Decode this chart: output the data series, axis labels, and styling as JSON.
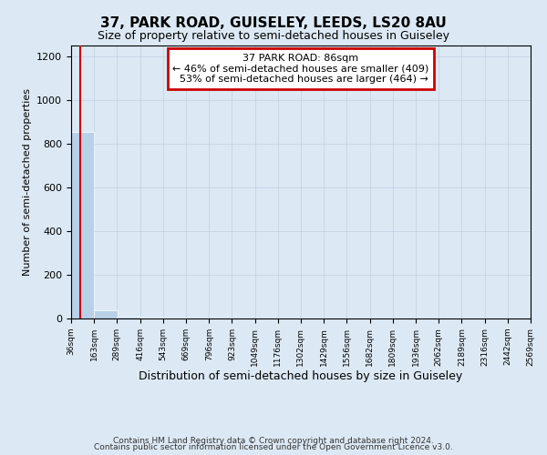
{
  "title": "37, PARK ROAD, GUISELEY, LEEDS, LS20 8AU",
  "subtitle": "Size of property relative to semi-detached houses in Guiseley",
  "xlabel": "Distribution of semi-detached houses by size in Guiseley",
  "ylabel": "Number of semi-detached properties",
  "property_size": 86,
  "property_label": "37 PARK ROAD: 86sqm",
  "pct_smaller": 46,
  "pct_larger": 53,
  "n_smaller": 409,
  "n_larger": 464,
  "bin_edges": [
    36,
    163,
    289,
    416,
    543,
    669,
    796,
    923,
    1049,
    1176,
    1302,
    1429,
    1556,
    1682,
    1809,
    1936,
    2062,
    2189,
    2316,
    2442,
    2569
  ],
  "bar_heights": [
    855,
    38,
    10,
    5,
    3,
    2,
    1,
    1,
    1,
    1,
    1,
    1,
    0,
    0,
    0,
    0,
    0,
    0,
    0,
    0
  ],
  "bar_color": "#b8d0e8",
  "vline_color": "#cc0000",
  "annotation_box_color": "#cc0000",
  "grid_color": "#c0cfe0",
  "background_color": "#dce9f5",
  "ylim": [
    0,
    1250
  ],
  "yticks": [
    0,
    200,
    400,
    600,
    800,
    1000,
    1200
  ],
  "footnote_line1": "Contains HM Land Registry data © Crown copyright and database right 2024.",
  "footnote_line2": "Contains public sector information licensed under the Open Government Licence v3.0."
}
